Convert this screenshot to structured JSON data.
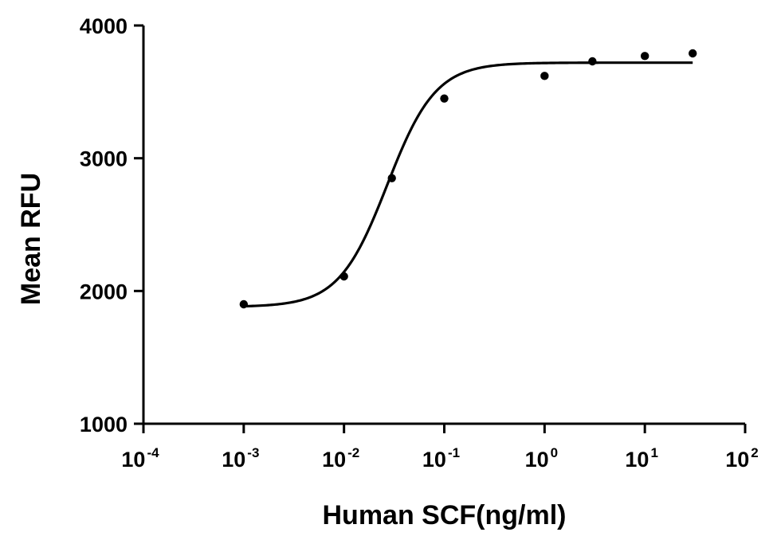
{
  "chart_data": {
    "type": "scatter",
    "title": "",
    "xlabel": "Human SCF(ng/ml)",
    "ylabel": "Mean RFU",
    "x_scale": "log10",
    "xlim": [
      0.0001,
      100
    ],
    "ylim": [
      1000,
      4000
    ],
    "x_ticks": [
      {
        "base": "10",
        "exp": "-4",
        "value": 0.0001
      },
      {
        "base": "10",
        "exp": "-3",
        "value": 0.001
      },
      {
        "base": "10",
        "exp": "-2",
        "value": 0.01
      },
      {
        "base": "10",
        "exp": "-1",
        "value": 0.1
      },
      {
        "base": "10",
        "exp": "0",
        "value": 1
      },
      {
        "base": "10",
        "exp": "1",
        "value": 10
      },
      {
        "base": "10",
        "exp": "2",
        "value": 100
      }
    ],
    "y_ticks": [
      {
        "label": "1000",
        "value": 1000
      },
      {
        "label": "2000",
        "value": 2000
      },
      {
        "label": "3000",
        "value": 3000
      },
      {
        "label": "4000",
        "value": 4000
      }
    ],
    "grid": false,
    "legend": "none",
    "series": [
      {
        "points": [
          {
            "x": 0.001,
            "y": 1900
          },
          {
            "x": 0.01,
            "y": 2110
          },
          {
            "x": 0.03,
            "y": 2850
          },
          {
            "x": 0.1,
            "y": 3450
          },
          {
            "x": 1,
            "y": 3620
          },
          {
            "x": 3,
            "y": 3730
          },
          {
            "x": 10,
            "y": 3770
          },
          {
            "x": 30,
            "y": 3790
          }
        ],
        "fit": {
          "model": "4PL",
          "bottom": 1880,
          "top": 3720,
          "ec50": 0.027,
          "hill": 1.8,
          "x_range": [
            0.001,
            30
          ]
        },
        "color": "#000000"
      }
    ]
  }
}
